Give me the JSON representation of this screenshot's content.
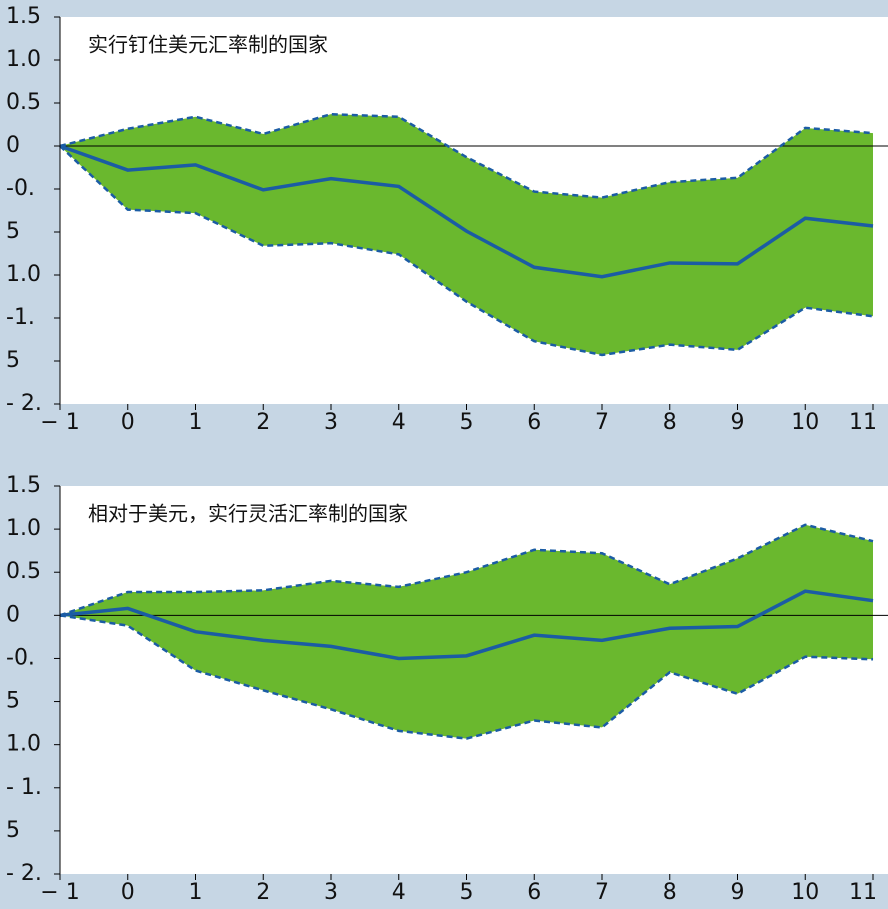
{
  "chart_data": [
    {
      "type": "band-line",
      "annotation": "实行钉住美元汇率制的国家",
      "x": [
        -1,
        0,
        1,
        2,
        3,
        4,
        5,
        6,
        7,
        8,
        9,
        10,
        11
      ],
      "central": [
        0,
        -0.28,
        -0.22,
        -0.51,
        -0.38,
        -0.47,
        -0.99,
        -1.41,
        -1.52,
        -1.36,
        -1.37,
        -0.84,
        -0.93
      ],
      "upper": [
        0,
        0.2,
        0.34,
        0.14,
        0.37,
        0.34,
        -0.13,
        -0.53,
        -0.6,
        -0.42,
        -0.37,
        0.21,
        0.15
      ],
      "lower": [
        0,
        -0.74,
        -0.78,
        -1.16,
        -1.13,
        -1.26,
        -1.81,
        -2.27,
        -2.43,
        -2.31,
        -2.37,
        -1.88,
        -1.98
      ],
      "line_color": "#1b5ca4",
      "band_color": "#6ab82e",
      "xlim": [
        -1,
        11
      ],
      "xticks": [
        {
          "value": -1,
          "label": "− 1"
        },
        0,
        1,
        2,
        3,
        4,
        5,
        6,
        7,
        8,
        9,
        10,
        11
      ],
      "ylim": [
        -3.0,
        1.5
      ],
      "yticks": [
        1.5,
        {
          "value": 1.0,
          "label": "1.0"
        },
        0.5,
        0,
        {
          "value": -0.5,
          "label": "-0."
        },
        {
          "value": -1.0,
          "label": "5"
        },
        {
          "value": -1.5,
          "label": "1.0"
        },
        {
          "value": -2.0,
          "label": "-1."
        },
        {
          "value": -2.5,
          "label": "5"
        },
        {
          "value": -3.0,
          "label": "- 2."
        }
      ]
    },
    {
      "type": "band-line",
      "annotation": "相对于美元，实行灵活汇率制的国家",
      "x": [
        -1,
        0,
        1,
        2,
        3,
        4,
        5,
        6,
        7,
        8,
        9,
        10,
        11
      ],
      "central": [
        0,
        0.08,
        -0.19,
        -0.29,
        -0.36,
        -0.5,
        -0.47,
        -0.23,
        -0.29,
        -0.15,
        -0.13,
        0.28,
        0.17
      ],
      "upper": [
        0,
        0.27,
        0.27,
        0.29,
        0.4,
        0.33,
        0.5,
        0.76,
        0.72,
        0.36,
        0.66,
        1.05,
        0.86
      ],
      "lower": [
        0,
        -0.12,
        -0.64,
        -0.87,
        -1.09,
        -1.34,
        -1.43,
        -1.22,
        -1.3,
        -0.66,
        -0.91,
        -0.48,
        -0.51
      ],
      "line_color": "#1b5ca4",
      "band_color": "#6ab82e",
      "xlim": [
        -1,
        11
      ],
      "xticks": [
        {
          "value": -1,
          "label": "− 1"
        },
        0,
        1,
        2,
        3,
        4,
        5,
        6,
        7,
        8,
        9,
        10,
        11
      ],
      "ylim": [
        -3.0,
        1.5
      ],
      "yticks": [
        1.5,
        {
          "value": 1.0,
          "label": "1.0"
        },
        0.5,
        0,
        {
          "value": -0.5,
          "label": "-0."
        },
        {
          "value": -1.0,
          "label": "5"
        },
        {
          "value": -1.5,
          "label": "1.0"
        },
        {
          "value": -2.0,
          "label": "- 1."
        },
        {
          "value": -2.5,
          "label": "5"
        },
        {
          "value": -3.0,
          "label": "- 2."
        }
      ]
    }
  ]
}
